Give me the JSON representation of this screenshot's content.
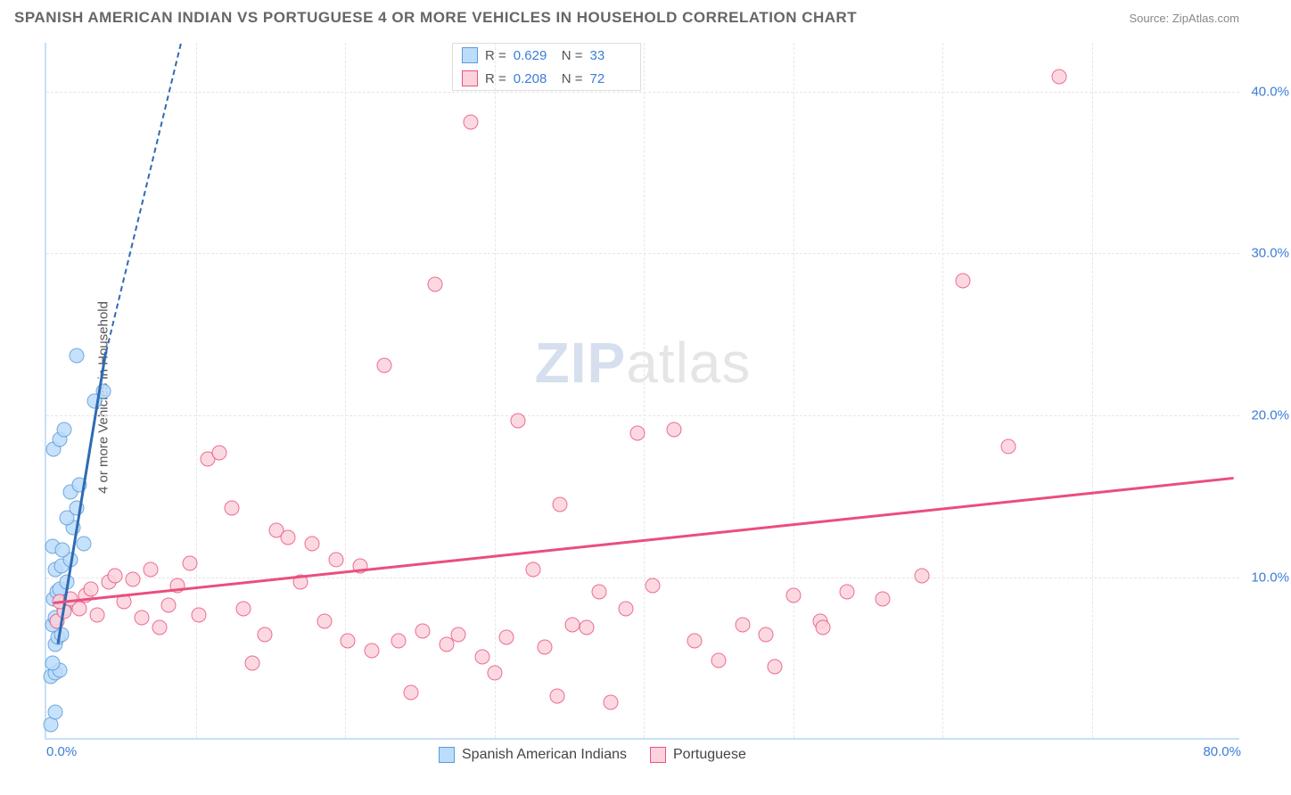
{
  "header": {
    "title": "SPANISH AMERICAN INDIAN VS PORTUGUESE 4 OR MORE VEHICLES IN HOUSEHOLD CORRELATION CHART",
    "source": "Source: ZipAtlas.com"
  },
  "ylabel": "4 or more Vehicles in Household",
  "watermark": {
    "bold": "ZIP",
    "rest": "atlas"
  },
  "chart": {
    "type": "scatter",
    "xlim": [
      0,
      80
    ],
    "ylim": [
      0,
      43
    ],
    "x_ticks": [
      0,
      80
    ],
    "y_ticks": [
      10,
      20,
      30,
      40
    ],
    "x_tick_labels": [
      "0.0%",
      "80.0%"
    ],
    "y_tick_labels": [
      "10.0%",
      "20.0%",
      "30.0%",
      "40.0%"
    ],
    "x_gridlines": [
      10,
      20,
      30,
      40,
      50,
      60,
      70
    ],
    "y_gridlines": [
      10,
      20,
      30,
      40
    ],
    "background_color": "#ffffff",
    "grid_color": "#e6e6e6",
    "axis_color": "#c7dffb",
    "tick_label_color": "#3b7dd8",
    "marker_radius": 8.5,
    "marker_border_width": 1.5,
    "series": [
      {
        "name": "Spanish American Indians",
        "color_fill": "#bcdcfb",
        "color_stroke": "#5b9bd5",
        "trend_color": "#2e6bb3",
        "R": "0.629",
        "N": "33",
        "trend": {
          "x1": 0.8,
          "y1": 6.0,
          "x2": 4.0,
          "y2": 24.0,
          "dash_to_x": 9.0,
          "dash_to_y": 52.0
        },
        "points": [
          [
            0.3,
            0.8
          ],
          [
            0.6,
            1.6
          ],
          [
            0.3,
            3.8
          ],
          [
            0.6,
            4.0
          ],
          [
            0.9,
            4.2
          ],
          [
            0.4,
            4.6
          ],
          [
            0.6,
            5.8
          ],
          [
            0.8,
            6.2
          ],
          [
            1.0,
            6.4
          ],
          [
            0.4,
            7.0
          ],
          [
            0.6,
            7.4
          ],
          [
            1.2,
            8.0
          ],
          [
            0.5,
            8.6
          ],
          [
            0.7,
            9.0
          ],
          [
            0.9,
            9.2
          ],
          [
            1.4,
            9.6
          ],
          [
            0.6,
            10.4
          ],
          [
            1.0,
            10.6
          ],
          [
            1.6,
            11.0
          ],
          [
            0.4,
            11.8
          ],
          [
            2.5,
            12.0
          ],
          [
            1.8,
            13.0
          ],
          [
            1.4,
            13.6
          ],
          [
            2.0,
            14.2
          ],
          [
            1.6,
            15.2
          ],
          [
            2.2,
            15.6
          ],
          [
            0.5,
            17.8
          ],
          [
            0.9,
            18.4
          ],
          [
            1.2,
            19.0
          ],
          [
            3.2,
            20.8
          ],
          [
            3.8,
            21.4
          ],
          [
            2.0,
            23.6
          ],
          [
            1.1,
            11.6
          ]
        ]
      },
      {
        "name": "Portuguese",
        "color_fill": "#fcd3dc",
        "color_stroke": "#e95383",
        "trend_color": "#ea4e7d",
        "R": "0.208",
        "N": "72",
        "trend": {
          "x1": 0.5,
          "y1": 8.5,
          "x2": 79.5,
          "y2": 16.2
        },
        "points": [
          [
            0.7,
            7.2
          ],
          [
            1.2,
            7.8
          ],
          [
            0.9,
            8.4
          ],
          [
            1.6,
            8.6
          ],
          [
            2.2,
            8.0
          ],
          [
            2.6,
            8.8
          ],
          [
            3.0,
            9.2
          ],
          [
            3.4,
            7.6
          ],
          [
            4.2,
            9.6
          ],
          [
            4.6,
            10.0
          ],
          [
            5.2,
            8.4
          ],
          [
            5.8,
            9.8
          ],
          [
            6.4,
            7.4
          ],
          [
            7.0,
            10.4
          ],
          [
            7.6,
            6.8
          ],
          [
            8.2,
            8.2
          ],
          [
            8.8,
            9.4
          ],
          [
            9.6,
            10.8
          ],
          [
            10.2,
            7.6
          ],
          [
            10.8,
            17.2
          ],
          [
            11.6,
            17.6
          ],
          [
            12.4,
            14.2
          ],
          [
            13.2,
            8.0
          ],
          [
            13.8,
            4.6
          ],
          [
            14.6,
            6.4
          ],
          [
            15.4,
            12.8
          ],
          [
            16.2,
            12.4
          ],
          [
            17.0,
            9.6
          ],
          [
            17.8,
            12.0
          ],
          [
            18.6,
            7.2
          ],
          [
            19.4,
            11.0
          ],
          [
            20.2,
            6.0
          ],
          [
            21.0,
            10.6
          ],
          [
            21.8,
            5.4
          ],
          [
            22.6,
            23.0
          ],
          [
            23.6,
            6.0
          ],
          [
            24.4,
            2.8
          ],
          [
            25.2,
            6.6
          ],
          [
            26.0,
            28.0
          ],
          [
            26.8,
            5.8
          ],
          [
            27.6,
            6.4
          ],
          [
            28.4,
            38.0
          ],
          [
            29.2,
            5.0
          ],
          [
            30.0,
            4.0
          ],
          [
            30.8,
            6.2
          ],
          [
            31.6,
            19.6
          ],
          [
            32.6,
            10.4
          ],
          [
            33.4,
            5.6
          ],
          [
            34.4,
            14.4
          ],
          [
            35.2,
            7.0
          ],
          [
            36.2,
            6.8
          ],
          [
            37.0,
            9.0
          ],
          [
            37.8,
            2.2
          ],
          [
            38.8,
            8.0
          ],
          [
            39.6,
            18.8
          ],
          [
            40.6,
            9.4
          ],
          [
            42.0,
            19.0
          ],
          [
            43.4,
            6.0
          ],
          [
            45.0,
            4.8
          ],
          [
            46.6,
            7.0
          ],
          [
            48.2,
            6.4
          ],
          [
            50.0,
            8.8
          ],
          [
            51.8,
            7.2
          ],
          [
            53.6,
            9.0
          ],
          [
            56.0,
            8.6
          ],
          [
            58.6,
            10.0
          ],
          [
            61.4,
            28.2
          ],
          [
            64.4,
            18.0
          ],
          [
            67.8,
            40.8
          ],
          [
            52.0,
            6.8
          ],
          [
            48.8,
            4.4
          ],
          [
            34.2,
            2.6
          ]
        ]
      }
    ]
  },
  "legend": {
    "items": [
      "Spanish American Indians",
      "Portuguese"
    ]
  },
  "stat_box": {
    "r_prefix": "R =",
    "n_prefix": "N ="
  }
}
